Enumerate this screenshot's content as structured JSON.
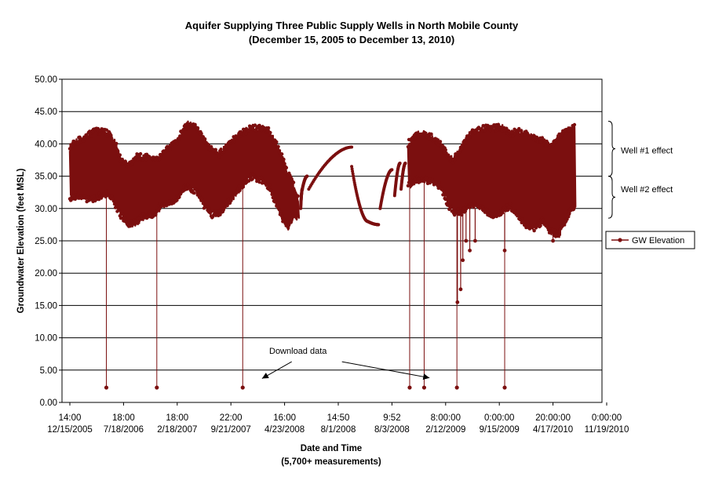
{
  "chart_data": {
    "type": "line",
    "title": "Aquifer Supplying Three Public Supply Wells in North Mobile County",
    "subtitle": "(December 15, 2005 to December 13, 2010)",
    "xlabel": "Date and Time",
    "xlabel_note": "(5,700+ measurements)",
    "ylabel": "Groundwater Elevation (feet MSL)",
    "ylim": [
      0,
      50
    ],
    "y_ticks": [
      "0.00",
      "5.00",
      "10.00",
      "15.00",
      "20.00",
      "25.00",
      "30.00",
      "35.00",
      "40.00",
      "45.00",
      "50.00"
    ],
    "x_ticks": [
      {
        "time": "14:00",
        "date": "12/15/2005"
      },
      {
        "time": "18:00",
        "date": "7/18/2006"
      },
      {
        "time": "18:00",
        "date": "2/18/2007"
      },
      {
        "time": "22:00",
        "date": "9/21/2007"
      },
      {
        "time": "16:00",
        "date": "4/23/2008"
      },
      {
        "time": "14:50",
        "date": "8/1/2008"
      },
      {
        "time": "9:52",
        "date": "8/3/2008"
      },
      {
        "time": "8:00:00",
        "date": "2/12/2009"
      },
      {
        "time": "0:00:00",
        "date": "9/15/2009"
      },
      {
        "time": "20:00:00",
        "date": "4/17/2010"
      },
      {
        "time": "0:00:00",
        "date": "11/19/2010"
      }
    ],
    "grid": true,
    "legend_position": "right",
    "series": [
      {
        "name": "GW Elevation",
        "color": "#7b0f0f",
        "marker": "circle",
        "envelope": [
          {
            "x": 0.0,
            "low": 31.0,
            "high": 40.0
          },
          {
            "x": 0.15,
            "low": 31.5,
            "high": 41.0
          },
          {
            "x": 0.3,
            "low": 31.0,
            "high": 41.5
          },
          {
            "x": 0.45,
            "low": 31.0,
            "high": 42.5
          },
          {
            "x": 0.6,
            "low": 31.5,
            "high": 42.5
          },
          {
            "x": 0.72,
            "low": 32.0,
            "high": 42.0
          },
          {
            "x": 0.85,
            "low": 30.0,
            "high": 40.5
          },
          {
            "x": 0.95,
            "low": 28.5,
            "high": 38.0
          },
          {
            "x": 1.1,
            "low": 27.0,
            "high": 37.0
          },
          {
            "x": 1.25,
            "low": 27.5,
            "high": 38.5
          },
          {
            "x": 1.4,
            "low": 28.5,
            "high": 38.5
          },
          {
            "x": 1.55,
            "low": 28.5,
            "high": 38.0
          },
          {
            "x": 1.7,
            "low": 30.0,
            "high": 38.5
          },
          {
            "x": 1.85,
            "low": 30.5,
            "high": 40.0
          },
          {
            "x": 2.0,
            "low": 31.0,
            "high": 41.0
          },
          {
            "x": 2.1,
            "low": 32.5,
            "high": 42.5
          },
          {
            "x": 2.2,
            "low": 33.0,
            "high": 43.5
          },
          {
            "x": 2.35,
            "low": 32.0,
            "high": 43.0
          },
          {
            "x": 2.5,
            "low": 30.0,
            "high": 41.0
          },
          {
            "x": 2.65,
            "low": 28.5,
            "high": 39.5
          },
          {
            "x": 2.8,
            "low": 29.0,
            "high": 39.0
          },
          {
            "x": 2.95,
            "low": 30.5,
            "high": 40.5
          },
          {
            "x": 3.1,
            "low": 32.0,
            "high": 41.5
          },
          {
            "x": 3.25,
            "low": 33.5,
            "high": 42.5
          },
          {
            "x": 3.4,
            "low": 34.5,
            "high": 43.0
          },
          {
            "x": 3.55,
            "low": 34.0,
            "high": 43.0
          },
          {
            "x": 3.7,
            "low": 33.0,
            "high": 42.5
          },
          {
            "x": 3.85,
            "low": 30.0,
            "high": 40.5
          },
          {
            "x": 3.95,
            "low": 28.0,
            "high": 38.5
          },
          {
            "x": 4.05,
            "low": 26.5,
            "high": 36.0
          },
          {
            "x": 4.15,
            "low": 28.5,
            "high": 34.5
          },
          {
            "x": 4.25,
            "low": 28.0,
            "high": 32.0
          }
        ],
        "spikes_to_low": [
          {
            "x": 0.68,
            "y": 2.3
          },
          {
            "x": 1.62,
            "y": 2.3
          },
          {
            "x": 3.22,
            "y": 2.3
          }
        ],
        "recovery_arcs": [
          {
            "x_start": 4.3,
            "x_end": 4.33,
            "y_start": 30.0,
            "y_end": 33.0
          },
          {
            "x_start": 4.33,
            "x_end": 4.42,
            "y_start": 33.0,
            "y_end": 35.0
          },
          {
            "x_start": 4.45,
            "x_end": 5.25,
            "y_start": 33.0,
            "y_end": 39.5
          },
          {
            "x_start": 5.25,
            "x_end": 5.55,
            "y_start": 36.5,
            "y_end": 28.0
          },
          {
            "x_start": 5.55,
            "x_end": 5.75,
            "y_start": 28.0,
            "y_end": 27.5
          },
          {
            "x_start": 5.78,
            "x_end": 6.0,
            "y_start": 30.0,
            "y_end": 36.0
          },
          {
            "x_start": 6.05,
            "x_end": 6.15,
            "y_start": 32.0,
            "y_end": 37.0
          },
          {
            "x_start": 6.17,
            "x_end": 6.25,
            "y_start": 33.0,
            "y_end": 37.0
          }
        ],
        "envelope2": [
          {
            "x": 6.3,
            "low": 33.0,
            "high": 40.5
          },
          {
            "x": 6.45,
            "low": 34.0,
            "high": 42.0
          },
          {
            "x": 6.6,
            "low": 34.0,
            "high": 42.0
          },
          {
            "x": 6.75,
            "low": 33.5,
            "high": 41.5
          },
          {
            "x": 6.9,
            "low": 33.0,
            "high": 40.5
          },
          {
            "x": 7.05,
            "low": 30.0,
            "high": 38.5
          },
          {
            "x": 7.15,
            "low": 29.0,
            "high": 38.0
          },
          {
            "x": 7.3,
            "low": 29.0,
            "high": 40.0
          },
          {
            "x": 7.45,
            "low": 30.0,
            "high": 42.0
          },
          {
            "x": 7.6,
            "low": 30.0,
            "high": 42.5
          },
          {
            "x": 7.75,
            "low": 29.0,
            "high": 43.0
          },
          {
            "x": 7.9,
            "low": 28.5,
            "high": 43.0
          },
          {
            "x": 8.05,
            "low": 29.0,
            "high": 43.0
          },
          {
            "x": 8.2,
            "low": 30.0,
            "high": 42.0
          },
          {
            "x": 8.35,
            "low": 28.0,
            "high": 42.5
          },
          {
            "x": 8.5,
            "low": 27.0,
            "high": 42.0
          },
          {
            "x": 8.65,
            "low": 26.5,
            "high": 41.5
          },
          {
            "x": 8.8,
            "low": 27.5,
            "high": 41.0
          },
          {
            "x": 8.95,
            "low": 26.0,
            "high": 40.0
          },
          {
            "x": 9.1,
            "low": 25.5,
            "high": 41.5
          },
          {
            "x": 9.25,
            "low": 28.0,
            "high": 42.5
          },
          {
            "x": 9.4,
            "low": 30.0,
            "high": 43.0
          }
        ],
        "spikes_to_low2": [
          {
            "x": 6.33,
            "y": 2.3
          },
          {
            "x": 6.6,
            "y": 2.3
          },
          {
            "x": 7.21,
            "y": 2.3
          },
          {
            "x": 8.1,
            "y": 2.3
          }
        ],
        "deep_dips": [
          {
            "x": 7.22,
            "y": 15.5
          },
          {
            "x": 7.28,
            "y": 17.5
          },
          {
            "x": 7.32,
            "y": 22.0
          },
          {
            "x": 7.38,
            "y": 25.0
          },
          {
            "x": 7.45,
            "y": 23.5
          },
          {
            "x": 7.55,
            "y": 25.0
          },
          {
            "x": 8.1,
            "y": 23.5
          },
          {
            "x": 9.0,
            "y": 25.0
          }
        ]
      }
    ],
    "annotations": [
      {
        "text": "Download data",
        "x": 4.25,
        "y": 8.0
      },
      {
        "text": "Well #1 effect",
        "x": 9.75,
        "y": 39.0
      },
      {
        "text": "Well #2 effect",
        "x": 9.75,
        "y": 33.0
      }
    ]
  }
}
